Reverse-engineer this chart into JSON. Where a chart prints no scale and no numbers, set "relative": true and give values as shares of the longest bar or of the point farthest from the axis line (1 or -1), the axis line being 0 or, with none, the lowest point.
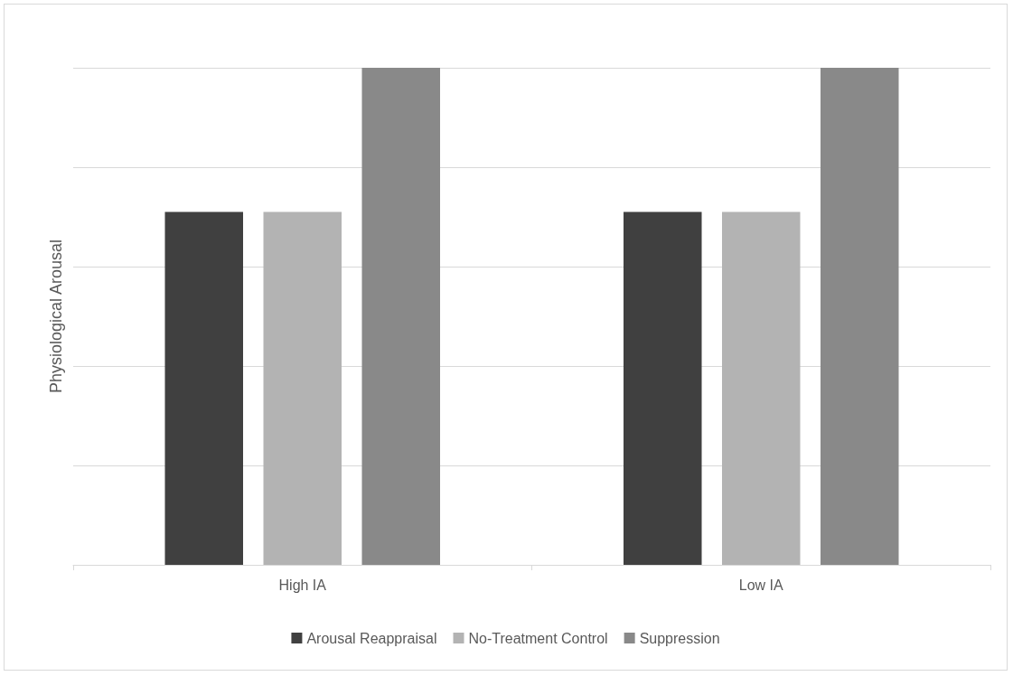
{
  "chart_data": {
    "type": "bar",
    "ylabel": "Physiological Arousal",
    "categories": [
      "High IA",
      "Low IA"
    ],
    "relative": true,
    "grid": "y",
    "legend": "bottom",
    "series": [
      {
        "name": "Arousal Reappraisal",
        "color": "#404040",
        "values": [
          0.71,
          0.71
        ]
      },
      {
        "name": "No-Treatment Control",
        "color": "#b3b3b3",
        "values": [
          0.71,
          0.71
        ]
      },
      {
        "name": "Suppression",
        "color": "#898989",
        "values": [
          1,
          1
        ]
      }
    ]
  }
}
